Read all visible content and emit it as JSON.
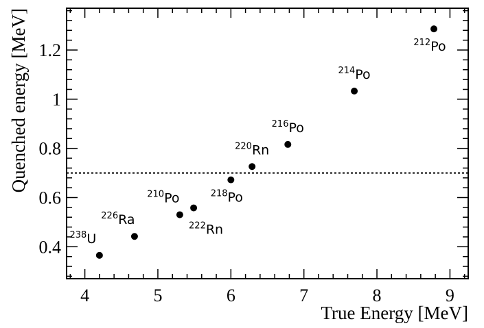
{
  "chart_data": {
    "type": "scatter",
    "title": "",
    "xlabel": "True Energy [MeV]",
    "ylabel": "Quenched energy [MeV]",
    "xlim": [
      3.75,
      9.25
    ],
    "ylim": [
      0.27,
      1.37
    ],
    "xticks": [
      4,
      5,
      6,
      7,
      8,
      9
    ],
    "xtick_labels": [
      "4",
      "5",
      "6",
      "7",
      "8",
      "9"
    ],
    "yticks": [
      0.4,
      0.6,
      0.8,
      1.0,
      1.2
    ],
    "ytick_labels": [
      "0.4",
      "0.6",
      "0.8",
      "1",
      "1.2"
    ],
    "reference_line": {
      "y": 0.7,
      "style": "dotted"
    },
    "points": [
      {
        "mass": "238",
        "element": "U",
        "x": 4.2,
        "y": 0.365,
        "label_pos": "above-left"
      },
      {
        "mass": "226",
        "element": "Ra",
        "x": 4.68,
        "y": 0.442,
        "label_pos": "above-left"
      },
      {
        "mass": "210",
        "element": "Po",
        "x": 5.3,
        "y": 0.53,
        "label_pos": "above-left"
      },
      {
        "mass": "222",
        "element": "Rn",
        "x": 5.49,
        "y": 0.558,
        "label_pos": "below"
      },
      {
        "mass": "218",
        "element": "Po",
        "x": 6.0,
        "y": 0.672,
        "label_pos": "below-left"
      },
      {
        "mass": "220",
        "element": "Rn",
        "x": 6.29,
        "y": 0.726,
        "label_pos": "above"
      },
      {
        "mass": "216",
        "element": "Po",
        "x": 6.78,
        "y": 0.816,
        "label_pos": "above"
      },
      {
        "mass": "214",
        "element": "Po",
        "x": 7.69,
        "y": 1.033,
        "label_pos": "above"
      },
      {
        "mass": "212",
        "element": "Po",
        "x": 8.78,
        "y": 1.286,
        "label_pos": "below-left"
      }
    ]
  }
}
